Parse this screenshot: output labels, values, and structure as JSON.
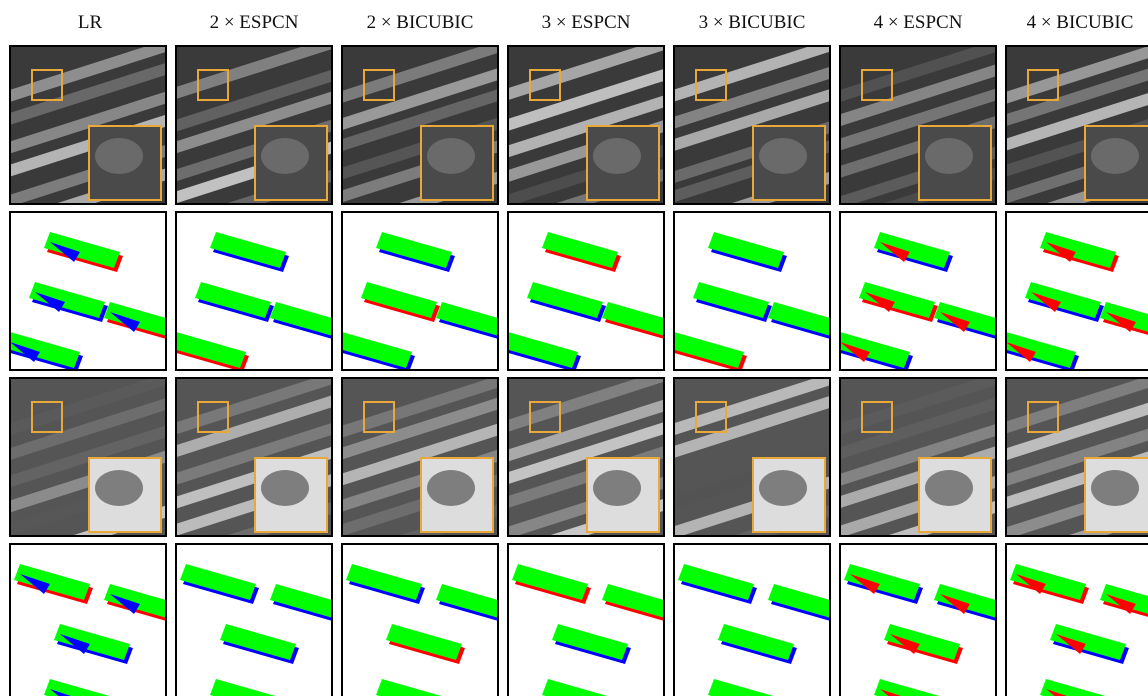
{
  "headers": [
    "LR",
    "2 × ESPCN",
    "2 × BICUBIC",
    "3 × ESPCN",
    "3 × BICUBIC",
    "4 × ESPCN",
    "4 × BICUBIC"
  ]
}
